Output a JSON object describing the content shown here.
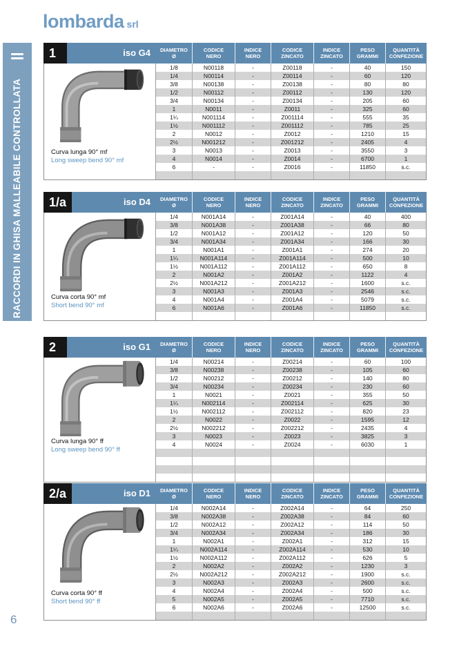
{
  "logo": {
    "name": "lombarda",
    "suffix": "srl"
  },
  "sidebar": {
    "title": "RACCORDI IN GHISA MALLEABILE CONTROLLATA"
  },
  "page": {
    "number": "6"
  },
  "table_columns": [
    {
      "line1": "DIAMETRO",
      "line2": "Ø"
    },
    {
      "line1": "CODICE",
      "line2": "NERO"
    },
    {
      "line1": "INDICE",
      "line2": "NERO"
    },
    {
      "line1": "CODICE",
      "line2": "ZINCATO"
    },
    {
      "line1": "INDICE",
      "line2": "ZINCATO"
    },
    {
      "line1": "PESO",
      "line2": "GRAMMI"
    },
    {
      "line1": "QUANTITÀ",
      "line2": "CONFEZIONE"
    }
  ],
  "colors": {
    "header_blue": "#5e8ab0",
    "sidebar_blue": "#7da0bf",
    "alt_row_gray": "#d4d4d4",
    "logo_blue": "#6f9cc5"
  },
  "sections": [
    {
      "number": "1",
      "iso": "iso G4",
      "caption_it": "Curva lunga 90° mf",
      "caption_en": "Long sweep bend 90° mf",
      "photo": "long-mf",
      "empty_rows": 1,
      "rows": [
        [
          "1/8",
          "N00118",
          "-",
          "Z00118",
          "-",
          "40",
          "150"
        ],
        [
          "1/4",
          "N00114",
          "-",
          "Z00114",
          "-",
          "60",
          "120"
        ],
        [
          "3/8",
          "N00138",
          "-",
          "Z00138",
          "-",
          "80",
          "80"
        ],
        [
          "1/2",
          "N00112",
          "-",
          "Z00112",
          "-",
          "130",
          "120"
        ],
        [
          "3/4",
          "N00134",
          "-",
          "Z00134",
          "-",
          "205",
          "60"
        ],
        [
          "1",
          "N0011",
          "-",
          "Z0011",
          "-",
          "325",
          "60"
        ],
        [
          "1¼",
          "N001114",
          "-",
          "Z001114",
          "-",
          "555",
          "35"
        ],
        [
          "1½",
          "N001112",
          "-",
          "Z001112",
          "-",
          "785",
          "25"
        ],
        [
          "2",
          "N0012",
          "-",
          "Z0012",
          "-",
          "1210",
          "15"
        ],
        [
          "2½",
          "N001212",
          "-",
          "Z001212",
          "-",
          "2405",
          "4"
        ],
        [
          "3",
          "N0013",
          "-",
          "Z0013",
          "-",
          "3550",
          "3"
        ],
        [
          "4",
          "N0014",
          "-",
          "Z0014",
          "-",
          "6700",
          "1"
        ],
        [
          "6",
          "-",
          "-",
          "Z0016",
          "-",
          "11850",
          "s.c."
        ]
      ]
    },
    {
      "number": "1/a",
      "iso": "iso D4",
      "caption_it": "Curva corta 90° mf",
      "caption_en": "Short bend 90° mf",
      "photo": "short-mf",
      "empty_rows": 1,
      "rows": [
        [
          "1/4",
          "N001A14",
          "-",
          "Z001A14",
          "-",
          "40",
          "400"
        ],
        [
          "3/8",
          "N001A38",
          "-",
          "Z001A38",
          "-",
          "66",
          "80"
        ],
        [
          "1/2",
          "N001A12",
          "-",
          "Z001A12",
          "-",
          "120",
          "50"
        ],
        [
          "3/4",
          "N001A34",
          "-",
          "Z001A34",
          "-",
          "166",
          "30"
        ],
        [
          "1",
          "N001A1",
          "-",
          "Z001A1",
          "-",
          "274",
          "20"
        ],
        [
          "1¼",
          "N001A114",
          "-",
          "Z001A114",
          "-",
          "500",
          "10"
        ],
        [
          "1½",
          "N001A112",
          "-",
          "Z001A112",
          "-",
          "650",
          "8"
        ],
        [
          "2",
          "N001A2",
          "-",
          "Z001A2",
          "-",
          "1122",
          "4"
        ],
        [
          "2½",
          "N001A212",
          "-",
          "Z001A212",
          "-",
          "1600",
          "s.c."
        ],
        [
          "3",
          "N001A3",
          "-",
          "Z001A3",
          "-",
          "2546",
          "s.c."
        ],
        [
          "4",
          "N001A4",
          "-",
          "Z001A4",
          "-",
          "5079",
          "s.c."
        ],
        [
          "6",
          "N001A6",
          "-",
          "Z001A6",
          "-",
          "11850",
          "s.c."
        ]
      ]
    },
    {
      "number": "2",
      "iso": "iso G1",
      "caption_it": "Curva lunga 90° ff",
      "caption_en": "Long sweep bend 90° ff",
      "photo": "long-ff",
      "empty_rows": 4,
      "rows": [
        [
          "1/4",
          "N00214",
          "-",
          "Z00214",
          "-",
          "60",
          "100"
        ],
        [
          "3/8",
          "N00238",
          "-",
          "Z00238",
          "-",
          "105",
          "60"
        ],
        [
          "1/2",
          "N00212",
          "-",
          "Z00212",
          "-",
          "140",
          "80"
        ],
        [
          "3/4",
          "N00234",
          "-",
          "Z00234",
          "-",
          "230",
          "60"
        ],
        [
          "1",
          "N0021",
          "-",
          "Z0021",
          "-",
          "355",
          "50"
        ],
        [
          "1¼",
          "N002114",
          "-",
          "Z002114",
          "-",
          "625",
          "30"
        ],
        [
          "1½",
          "N002112",
          "-",
          "Z002112",
          "-",
          "820",
          "23"
        ],
        [
          "2",
          "N0022",
          "-",
          "Z0022",
          "-",
          "1595",
          "12"
        ],
        [
          "2½",
          "N002212",
          "-",
          "Z002212",
          "-",
          "2435",
          "4"
        ],
        [
          "3",
          "N0023",
          "-",
          "Z0023",
          "-",
          "3825",
          "3"
        ],
        [
          "4",
          "N0024",
          "-",
          "Z0024",
          "-",
          "6030",
          "1"
        ]
      ]
    },
    {
      "number": "2/a",
      "iso": "iso D1",
      "caption_it": "Curva corta 90° ff",
      "caption_en": "Short bend 90° ff",
      "photo": "short-ff",
      "empty_rows": 1,
      "rows": [
        [
          "1/4",
          "N002A14",
          "-",
          "Z002A14",
          "-",
          "64",
          "250"
        ],
        [
          "3/8",
          "N002A38",
          "-",
          "Z002A38",
          "-",
          "84",
          "60"
        ],
        [
          "1/2",
          "N002A12",
          "-",
          "Z002A12",
          "-",
          "114",
          "50"
        ],
        [
          "3/4",
          "N002A34",
          "-",
          "Z002A34",
          "-",
          "186",
          "30"
        ],
        [
          "1",
          "N002A1",
          "-",
          "Z002A1",
          "-",
          "312",
          "15"
        ],
        [
          "1¼",
          "N002A114",
          "-",
          "Z002A114",
          "-",
          "530",
          "10"
        ],
        [
          "1½",
          "N002A112",
          "-",
          "Z002A112",
          "-",
          "626",
          "5"
        ],
        [
          "2",
          "N002A2",
          "-",
          "Z002A2",
          "-",
          "1230",
          "3"
        ],
        [
          "2½",
          "N002A212",
          "-",
          "Z002A212",
          "-",
          "1900",
          "s.c."
        ],
        [
          "3",
          "N002A3",
          "-",
          "Z002A3",
          "-",
          "2600",
          "s.c."
        ],
        [
          "4",
          "N002A4",
          "-",
          "Z002A4",
          "-",
          "500",
          "s.c."
        ],
        [
          "5",
          "N002A5",
          "-",
          "Z002A5",
          "-",
          "7710",
          "s.c."
        ],
        [
          "6",
          "N002A6",
          "-",
          "Z002A6",
          "-",
          "12500",
          "s.c."
        ]
      ]
    }
  ]
}
